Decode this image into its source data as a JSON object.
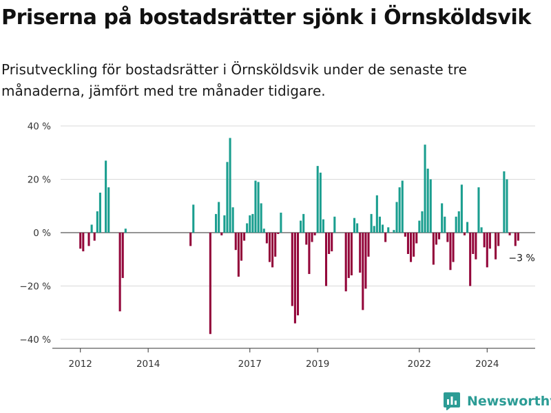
{
  "title": "Priserna på bostadsrätter sjönk i Örnsköldsvik",
  "subtitle": "Prisutveckling för bostadsrätter i Örnsköldsvik under de senaste tre månaderna, jämfört med tre månader tidigare.",
  "brand": {
    "name": "Newsworthy",
    "icon": "newsworthy-logo-icon",
    "color": "#2c9c95"
  },
  "colors": {
    "positive": "#1a9e8f",
    "negative": "#93063a",
    "grid": "#d9d9d9",
    "axis": "#333333"
  },
  "chart_data": {
    "type": "bar",
    "x_unit": "month",
    "xlim": [
      "2011-06",
      "2025-06"
    ],
    "ylim": [
      -40,
      40
    ],
    "y_ticks": [
      {
        "value": 40,
        "label": "40 %"
      },
      {
        "value": 20,
        "label": "20 %"
      },
      {
        "value": 0,
        "label": "0 %"
      },
      {
        "value": -20,
        "label": "−20 %"
      },
      {
        "value": -40,
        "label": "−40 %"
      }
    ],
    "x_ticks": [
      {
        "date": "2012-01",
        "label": "2012"
      },
      {
        "date": "2014-01",
        "label": "2014"
      },
      {
        "date": "2017-01",
        "label": "2017"
      },
      {
        "date": "2019-01",
        "label": "2019"
      },
      {
        "date": "2022-01",
        "label": "2022"
      },
      {
        "date": "2024-01",
        "label": "2024"
      }
    ],
    "grid": true,
    "annotation": {
      "date": "2024-12",
      "value": -3,
      "label": "−3 %"
    },
    "data": [
      {
        "x": "2012-01",
        "y": -6
      },
      {
        "x": "2012-02",
        "y": -7
      },
      {
        "x": "2012-04",
        "y": -5
      },
      {
        "x": "2012-05",
        "y": 3
      },
      {
        "x": "2012-06",
        "y": -3
      },
      {
        "x": "2012-07",
        "y": 8
      },
      {
        "x": "2012-08",
        "y": 15
      },
      {
        "x": "2012-10",
        "y": 27
      },
      {
        "x": "2012-11",
        "y": 17
      },
      {
        "x": "2013-03",
        "y": -29.5
      },
      {
        "x": "2013-04",
        "y": -17
      },
      {
        "x": "2013-05",
        "y": 1.5
      },
      {
        "x": "2015-04",
        "y": -5
      },
      {
        "x": "2015-05",
        "y": 10.5
      },
      {
        "x": "2015-11",
        "y": -38
      },
      {
        "x": "2016-01",
        "y": 7
      },
      {
        "x": "2016-02",
        "y": 11.5
      },
      {
        "x": "2016-03",
        "y": -1
      },
      {
        "x": "2016-04",
        "y": 6.5
      },
      {
        "x": "2016-05",
        "y": 26.5
      },
      {
        "x": "2016-06",
        "y": 35.5
      },
      {
        "x": "2016-07",
        "y": 9.5
      },
      {
        "x": "2016-08",
        "y": -6.5
      },
      {
        "x": "2016-09",
        "y": -16.5
      },
      {
        "x": "2016-10",
        "y": -10.5
      },
      {
        "x": "2016-11",
        "y": -3
      },
      {
        "x": "2016-12",
        "y": 3.5
      },
      {
        "x": "2017-01",
        "y": 6.5
      },
      {
        "x": "2017-02",
        "y": 7
      },
      {
        "x": "2017-03",
        "y": 19.5
      },
      {
        "x": "2017-04",
        "y": 19
      },
      {
        "x": "2017-05",
        "y": 11
      },
      {
        "x": "2017-06",
        "y": 1.5
      },
      {
        "x": "2017-07",
        "y": -4
      },
      {
        "x": "2017-08",
        "y": -11
      },
      {
        "x": "2017-09",
        "y": -13
      },
      {
        "x": "2017-10",
        "y": -9
      },
      {
        "x": "2017-11",
        "y": -0.5
      },
      {
        "x": "2017-12",
        "y": 7.5
      },
      {
        "x": "2018-04",
        "y": -27.5
      },
      {
        "x": "2018-05",
        "y": -34
      },
      {
        "x": "2018-06",
        "y": -31
      },
      {
        "x": "2018-07",
        "y": 4.5
      },
      {
        "x": "2018-08",
        "y": 7
      },
      {
        "x": "2018-09",
        "y": -4.5
      },
      {
        "x": "2018-10",
        "y": -15.5
      },
      {
        "x": "2018-11",
        "y": -3.5
      },
      {
        "x": "2018-12",
        "y": -1
      },
      {
        "x": "2019-01",
        "y": 25
      },
      {
        "x": "2019-02",
        "y": 22.5
      },
      {
        "x": "2019-03",
        "y": 5
      },
      {
        "x": "2019-04",
        "y": -20
      },
      {
        "x": "2019-05",
        "y": -8
      },
      {
        "x": "2019-06",
        "y": -7
      },
      {
        "x": "2019-07",
        "y": 6
      },
      {
        "x": "2019-11",
        "y": -22
      },
      {
        "x": "2019-12",
        "y": -17
      },
      {
        "x": "2020-01",
        "y": -16
      },
      {
        "x": "2020-02",
        "y": 5.5
      },
      {
        "x": "2020-03",
        "y": 3.5
      },
      {
        "x": "2020-04",
        "y": -15
      },
      {
        "x": "2020-05",
        "y": -29
      },
      {
        "x": "2020-06",
        "y": -21
      },
      {
        "x": "2020-07",
        "y": -9
      },
      {
        "x": "2020-08",
        "y": 7
      },
      {
        "x": "2020-09",
        "y": 2.5
      },
      {
        "x": "2020-10",
        "y": 14
      },
      {
        "x": "2020-11",
        "y": 6
      },
      {
        "x": "2020-12",
        "y": 3
      },
      {
        "x": "2021-01",
        "y": -3.5
      },
      {
        "x": "2021-02",
        "y": 2
      },
      {
        "x": "2021-04",
        "y": 1
      },
      {
        "x": "2021-05",
        "y": 11.5
      },
      {
        "x": "2021-06",
        "y": 17
      },
      {
        "x": "2021-07",
        "y": 19.5
      },
      {
        "x": "2021-08",
        "y": -1.5
      },
      {
        "x": "2021-09",
        "y": -8
      },
      {
        "x": "2021-10",
        "y": -11
      },
      {
        "x": "2021-11",
        "y": -9
      },
      {
        "x": "2021-12",
        "y": -4
      },
      {
        "x": "2022-01",
        "y": 4.5
      },
      {
        "x": "2022-02",
        "y": 8
      },
      {
        "x": "2022-03",
        "y": 33
      },
      {
        "x": "2022-04",
        "y": 24
      },
      {
        "x": "2022-05",
        "y": 20
      },
      {
        "x": "2022-06",
        "y": -12
      },
      {
        "x": "2022-07",
        "y": -4.5
      },
      {
        "x": "2022-08",
        "y": -2.5
      },
      {
        "x": "2022-09",
        "y": 11
      },
      {
        "x": "2022-10",
        "y": 6
      },
      {
        "x": "2022-11",
        "y": -3.5
      },
      {
        "x": "2022-12",
        "y": -14
      },
      {
        "x": "2023-01",
        "y": -11
      },
      {
        "x": "2023-02",
        "y": 6
      },
      {
        "x": "2023-03",
        "y": 8
      },
      {
        "x": "2023-04",
        "y": 18
      },
      {
        "x": "2023-05",
        "y": -1
      },
      {
        "x": "2023-06",
        "y": 4
      },
      {
        "x": "2023-07",
        "y": -20
      },
      {
        "x": "2023-08",
        "y": -8
      },
      {
        "x": "2023-09",
        "y": -10
      },
      {
        "x": "2023-10",
        "y": 17
      },
      {
        "x": "2023-11",
        "y": 2
      },
      {
        "x": "2023-12",
        "y": -5.5
      },
      {
        "x": "2024-01",
        "y": -13
      },
      {
        "x": "2024-02",
        "y": -6
      },
      {
        "x": "2024-04",
        "y": -10
      },
      {
        "x": "2024-05",
        "y": -5
      },
      {
        "x": "2024-07",
        "y": 23
      },
      {
        "x": "2024-08",
        "y": 20
      },
      {
        "x": "2024-09",
        "y": -1
      },
      {
        "x": "2024-11",
        "y": -5
      },
      {
        "x": "2024-12",
        "y": -3
      }
    ]
  }
}
